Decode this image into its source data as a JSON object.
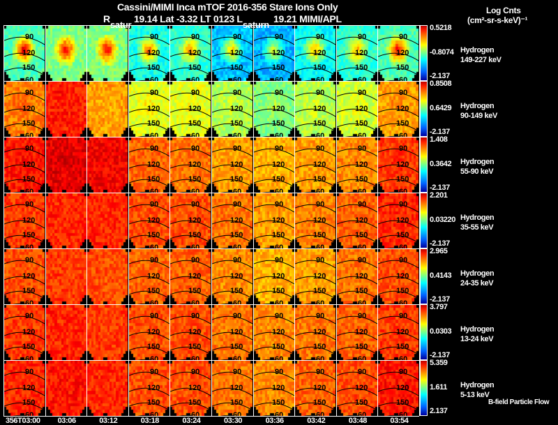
{
  "header": {
    "title": "Cassini/MIMI Inca mTOF  2016-356    Stare    Ions Only",
    "r_label": "R",
    "position": "19.14 Lat -3.32 LT 0123 L",
    "l_value": "19.21  MIMI/APL",
    "overlay_left": "satur",
    "overlay_mid": "saturn"
  },
  "units": {
    "line1": "Log Cnts",
    "line2": "(cm²-sr-s-keV)⁻¹"
  },
  "footer_note": "B-field Particle Flow",
  "chart_data": {
    "type": "heatmap",
    "title": "Cassini/MIMI Inca mTOF 2016-356 Stare Ions Only",
    "x_tick_labels": [
      "356T03:00",
      "03:06",
      "03:12",
      "03:18",
      "03:24",
      "03:30",
      "03:36",
      "03:42",
      "03:48",
      "03:54"
    ],
    "contour_labels": [
      "90",
      "120",
      "150",
      "60"
    ],
    "rows": [
      {
        "species": "Hydrogen",
        "energy": "149-227 keV",
        "max": "0.5218",
        "mid": "-0.8074",
        "min": "-2.137",
        "levels": [
          0.45,
          0.5,
          0.5,
          0.4,
          0.42,
          0.32,
          0.3,
          0.38,
          0.42,
          0.45
        ],
        "center": [
          0.92,
          0.9,
          0.9,
          0.8,
          0.75,
          0.7,
          0.6,
          0.72,
          0.72,
          0.9
        ]
      },
      {
        "species": "Hydrogen",
        "energy": "90-149 keV",
        "max": "0.8508",
        "mid": "0.6429",
        "min": "-2.137",
        "levels": [
          0.75,
          0.85,
          0.72,
          0.6,
          0.6,
          0.55,
          0.5,
          0.55,
          0.58,
          0.72
        ],
        "center": [
          0.78,
          0.85,
          0.7,
          0.65,
          0.62,
          0.58,
          0.55,
          0.6,
          0.62,
          0.75
        ]
      },
      {
        "species": "Hydrogen",
        "energy": "55-90 keV",
        "max": "1.408",
        "mid": "0.3642",
        "min": "-2.137",
        "levels": [
          0.85,
          0.9,
          0.88,
          0.78,
          0.76,
          0.72,
          0.7,
          0.72,
          0.74,
          0.82
        ],
        "center": [
          0.88,
          0.92,
          0.88,
          0.78,
          0.76,
          0.72,
          0.7,
          0.72,
          0.74,
          0.85
        ]
      },
      {
        "species": "Hydrogen",
        "energy": "35-55 keV",
        "max": "2.201",
        "mid": "0.03220",
        "min": "-2.137",
        "levels": [
          0.82,
          0.84,
          0.84,
          0.8,
          0.8,
          0.76,
          0.72,
          0.75,
          0.78,
          0.84
        ],
        "center": [
          0.82,
          0.84,
          0.84,
          0.8,
          0.8,
          0.76,
          0.72,
          0.75,
          0.78,
          0.84
        ]
      },
      {
        "species": "Hydrogen",
        "energy": "24-35 keV",
        "max": "2.965",
        "mid": "0.4143",
        "min": "-2.137",
        "levels": [
          0.8,
          0.82,
          0.8,
          0.78,
          0.78,
          0.74,
          0.7,
          0.72,
          0.76,
          0.8
        ],
        "center": [
          0.8,
          0.82,
          0.8,
          0.78,
          0.78,
          0.74,
          0.7,
          0.72,
          0.76,
          0.8
        ]
      },
      {
        "species": "Hydrogen",
        "energy": "13-24 keV",
        "max": "3.797",
        "mid": "0.0303",
        "min": "-2.137",
        "levels": [
          0.82,
          0.84,
          0.82,
          0.8,
          0.8,
          0.76,
          0.74,
          0.76,
          0.78,
          0.82
        ],
        "center": [
          0.82,
          0.84,
          0.82,
          0.8,
          0.8,
          0.76,
          0.74,
          0.76,
          0.78,
          0.82
        ]
      },
      {
        "species": "Hydrogen",
        "energy": "5-13 keV",
        "max": "5.359",
        "mid": "1.611",
        "min": "2.137",
        "levels": [
          0.84,
          0.86,
          0.84,
          0.8,
          0.8,
          0.76,
          0.74,
          0.78,
          0.8,
          0.86
        ],
        "center": [
          0.84,
          0.86,
          0.84,
          0.8,
          0.8,
          0.76,
          0.74,
          0.78,
          0.8,
          0.86
        ]
      }
    ]
  }
}
